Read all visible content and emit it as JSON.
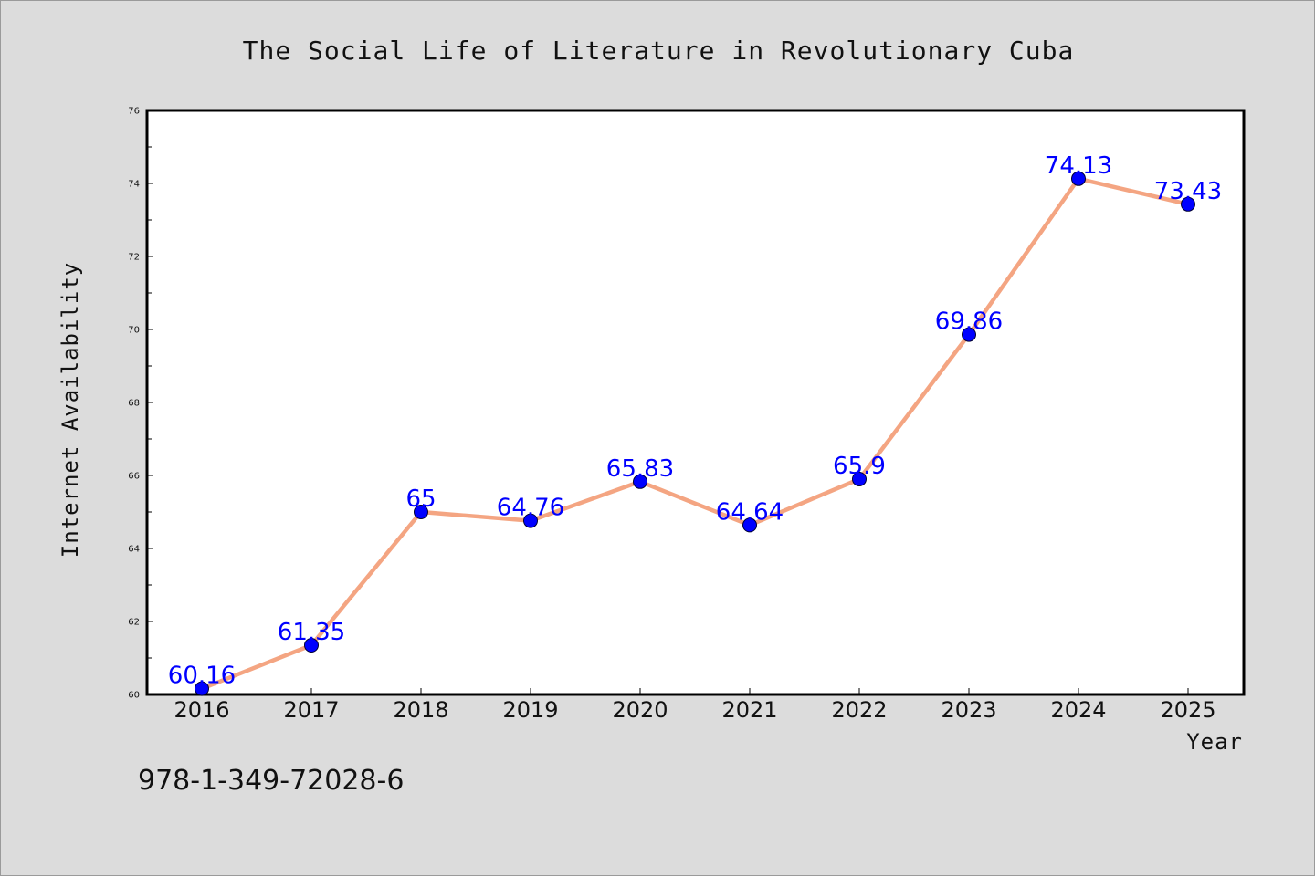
{
  "chart_data": {
    "type": "line",
    "title": "The Social Life of Literature in Revolutionary Cuba",
    "xlabel": "Year",
    "ylabel": "Internet Availability",
    "categories": [
      "2016",
      "2017",
      "2018",
      "2019",
      "2020",
      "2021",
      "2022",
      "2023",
      "2024",
      "2025"
    ],
    "values": [
      60.16,
      61.35,
      65,
      64.76,
      65.83,
      64.64,
      65.9,
      69.86,
      74.13,
      73.43
    ],
    "data_labels": [
      "60.16",
      "61.35",
      "65",
      "64.76",
      "65.83",
      "64.64",
      "65.9",
      "69.86",
      "74.13",
      "73.43"
    ],
    "ylim": [
      60,
      76
    ],
    "y_ticks": [
      60,
      62,
      64,
      66,
      68,
      70,
      72,
      74,
      76
    ],
    "y_tick_labels": [
      "60",
      "62",
      "64",
      "66",
      "68",
      "70",
      "72",
      "74",
      "76"
    ],
    "grid": false,
    "colors": {
      "line": "#f4a582",
      "marker": "#0000ff",
      "data_label": "#0000ff",
      "figure_background": "#dcdcdc",
      "plot_background": "#ffffff"
    }
  },
  "footer": {
    "isbn": "978-1-349-72028-6"
  }
}
